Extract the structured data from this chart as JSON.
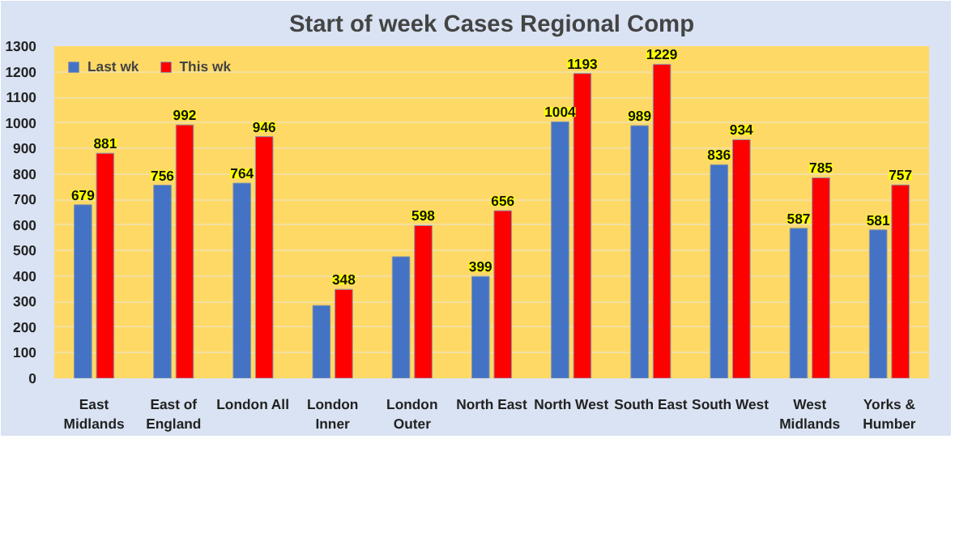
{
  "chart_data": {
    "type": "bar",
    "title": "Start of week Cases Regional Comp",
    "categories": [
      "East Midlands",
      "East of England",
      "London All",
      "London Inner",
      "London Outer",
      "North East",
      "North West",
      "South East",
      "South West",
      "West Midlands",
      "Yorks & Humber"
    ],
    "series": [
      {
        "name": "Last wk",
        "color": "#4472c4",
        "values": [
          679,
          756,
          764,
          285,
          476,
          399,
          1004,
          989,
          836,
          587,
          581
        ],
        "value_labels": [
          "679",
          "756",
          "764",
          null,
          null,
          "399",
          "1004",
          "989",
          "836",
          "587",
          "581"
        ]
      },
      {
        "name": "This wk",
        "color": "#ff0000",
        "values": [
          881,
          992,
          946,
          348,
          598,
          656,
          1193,
          1229,
          934,
          785,
          757
        ],
        "value_labels": [
          "881",
          "992",
          "946",
          "348",
          "598",
          "656",
          "1193",
          "1229",
          "934",
          "785",
          "757"
        ]
      }
    ],
    "ylim": [
      0,
      1300
    ],
    "yticks": [
      0,
      100,
      200,
      300,
      400,
      500,
      600,
      700,
      800,
      900,
      1000,
      1100,
      1200,
      1300
    ],
    "grid": "y",
    "legend": "top left"
  }
}
